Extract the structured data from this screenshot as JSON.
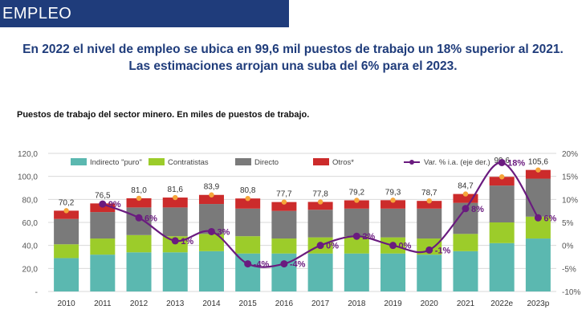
{
  "banner": {
    "title": "EMPLEO"
  },
  "headline": {
    "line1": "En 2022 el nivel de empleo se ubica en 99,6 mil puestos de trabajo un 18% superior al 2021.",
    "line2": "Las estimaciones arrojan una suba del 6% para el 2023."
  },
  "chart_data": {
    "type": "bar",
    "title": "Puestos de trabajo del sector minero. En miles de puestos de trabajo.",
    "stacked": true,
    "categories": [
      "2010",
      "2011",
      "2012",
      "2013",
      "2014",
      "2015",
      "2016",
      "2017",
      "2018",
      "2019",
      "2020",
      "2021",
      "2022e",
      "2023p"
    ],
    "series": [
      {
        "name": "Indirecto \"puro\"",
        "color": "#5bb8b0",
        "values": [
          29,
          32,
          34,
          34,
          35,
          33,
          33,
          33,
          33,
          33,
          32,
          35,
          42,
          46
        ]
      },
      {
        "name": "Contratistas",
        "color": "#9ccc2a",
        "values": [
          12,
          14,
          15,
          14,
          15,
          15,
          13,
          14,
          15,
          14,
          14,
          15,
          18,
          19
        ]
      },
      {
        "name": "Directo",
        "color": "#7a7a7a",
        "values": [
          22,
          23,
          24,
          25,
          26,
          24,
          24,
          24,
          24,
          25,
          26,
          27,
          32,
          33
        ]
      },
      {
        "name": "Otros*",
        "color": "#cc2b2b",
        "values": [
          7.2,
          7.5,
          8,
          8.6,
          7.9,
          8.8,
          7.7,
          6.8,
          7.2,
          7.3,
          6.7,
          7.7,
          7.6,
          7.6
        ]
      }
    ],
    "totals": [
      70.2,
      76.5,
      81.0,
      81.6,
      83.9,
      80.8,
      77.7,
      77.8,
      79.2,
      79.3,
      78.7,
      84.7,
      99.6,
      105.6
    ],
    "total_labels": [
      "70,2",
      "76,5",
      "81,0",
      "81,6",
      "83,9",
      "80,8",
      "77,7",
      "77,8",
      "79,2",
      "79,3",
      "78,7",
      "84,7",
      "99,6",
      "105,6"
    ],
    "line_series": {
      "name": "Var. % i.a. (eje der.)",
      "color": "#6a1b7f",
      "values": [
        null,
        9,
        6,
        1,
        3,
        -4,
        -4,
        0,
        2,
        0,
        -1,
        8,
        18,
        6
      ],
      "labels": [
        "",
        "9%",
        "6%",
        "1%",
        "3%",
        "-4%",
        "-4%",
        "0%",
        "2%",
        "0%",
        "-1%",
        "8%",
        "18%",
        "6%"
      ]
    },
    "y_left": {
      "min": 0,
      "max": 120,
      "ticks": [
        "-",
        "20,0",
        "40,0",
        "60,0",
        "80,0",
        "100,0",
        "120,0"
      ]
    },
    "y_right": {
      "min": -10,
      "max": 20,
      "ticks": [
        "-10%",
        "-5%",
        "0%",
        "5%",
        "10%",
        "15%",
        "20%"
      ]
    },
    "legend_position": "top"
  }
}
